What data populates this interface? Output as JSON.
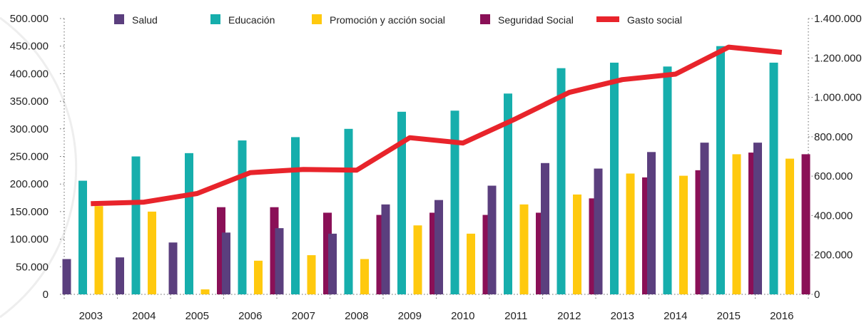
{
  "chart_data": {
    "type": "bar",
    "title": "",
    "xlabel": "",
    "ylabel": "",
    "categories": [
      "2003",
      "2004",
      "2005",
      "2006",
      "2007",
      "2008",
      "2009",
      "2010",
      "2011",
      "2012",
      "2013",
      "2014",
      "2015",
      "2016"
    ],
    "ylim": [
      0,
      500000
    ],
    "y2lim": [
      0,
      1400000
    ],
    "y_ticks": [
      "0",
      "50.000",
      "100.000",
      "150.000",
      "200.000",
      "250.000",
      "300.000",
      "350.000",
      "400.000",
      "450.000",
      "500.000"
    ],
    "y2_ticks": [
      "0",
      "200.000",
      "400.000",
      "600.000",
      "800.000",
      "1.000.000",
      "1.200.000",
      "1.400.000"
    ],
    "grid": false,
    "legend_position": "top",
    "series": [
      {
        "name": "Salud",
        "type": "bar",
        "axis": "left",
        "color": "#5b3f7e",
        "values": [
          64000,
          67000,
          94000,
          112000,
          120000,
          110000,
          163000,
          171000,
          197000,
          238000,
          228000,
          258000,
          275000,
          275000
        ]
      },
      {
        "name": "Educación",
        "type": "bar",
        "axis": "left",
        "color": "#16aeac",
        "values": [
          206000,
          250000,
          256000,
          279000,
          285000,
          300000,
          331000,
          333000,
          364000,
          410000,
          420000,
          413000,
          450000,
          420000
        ]
      },
      {
        "name": "Promoción y acción social",
        "type": "bar",
        "axis": "left",
        "color": "#ffc90e",
        "values": [
          160000,
          150000,
          9000,
          61000,
          71000,
          64000,
          125000,
          110000,
          163000,
          181000,
          219000,
          215000,
          254000,
          246000
        ]
      },
      {
        "name": "Seguridad Social",
        "type": "bar",
        "axis": "left",
        "color": "#8a1057",
        "values": [
          0,
          0,
          158000,
          158000,
          148000,
          144000,
          148000,
          144000,
          148000,
          174000,
          212000,
          225000,
          257000,
          254000
        ]
      },
      {
        "name": "Gasto social",
        "type": "line",
        "axis": "right",
        "color": "#e8242b",
        "values": [
          460000,
          468000,
          512000,
          618000,
          634000,
          630000,
          795000,
          768000,
          892000,
          1025000,
          1090000,
          1118000,
          1255000,
          1228000
        ]
      }
    ]
  }
}
